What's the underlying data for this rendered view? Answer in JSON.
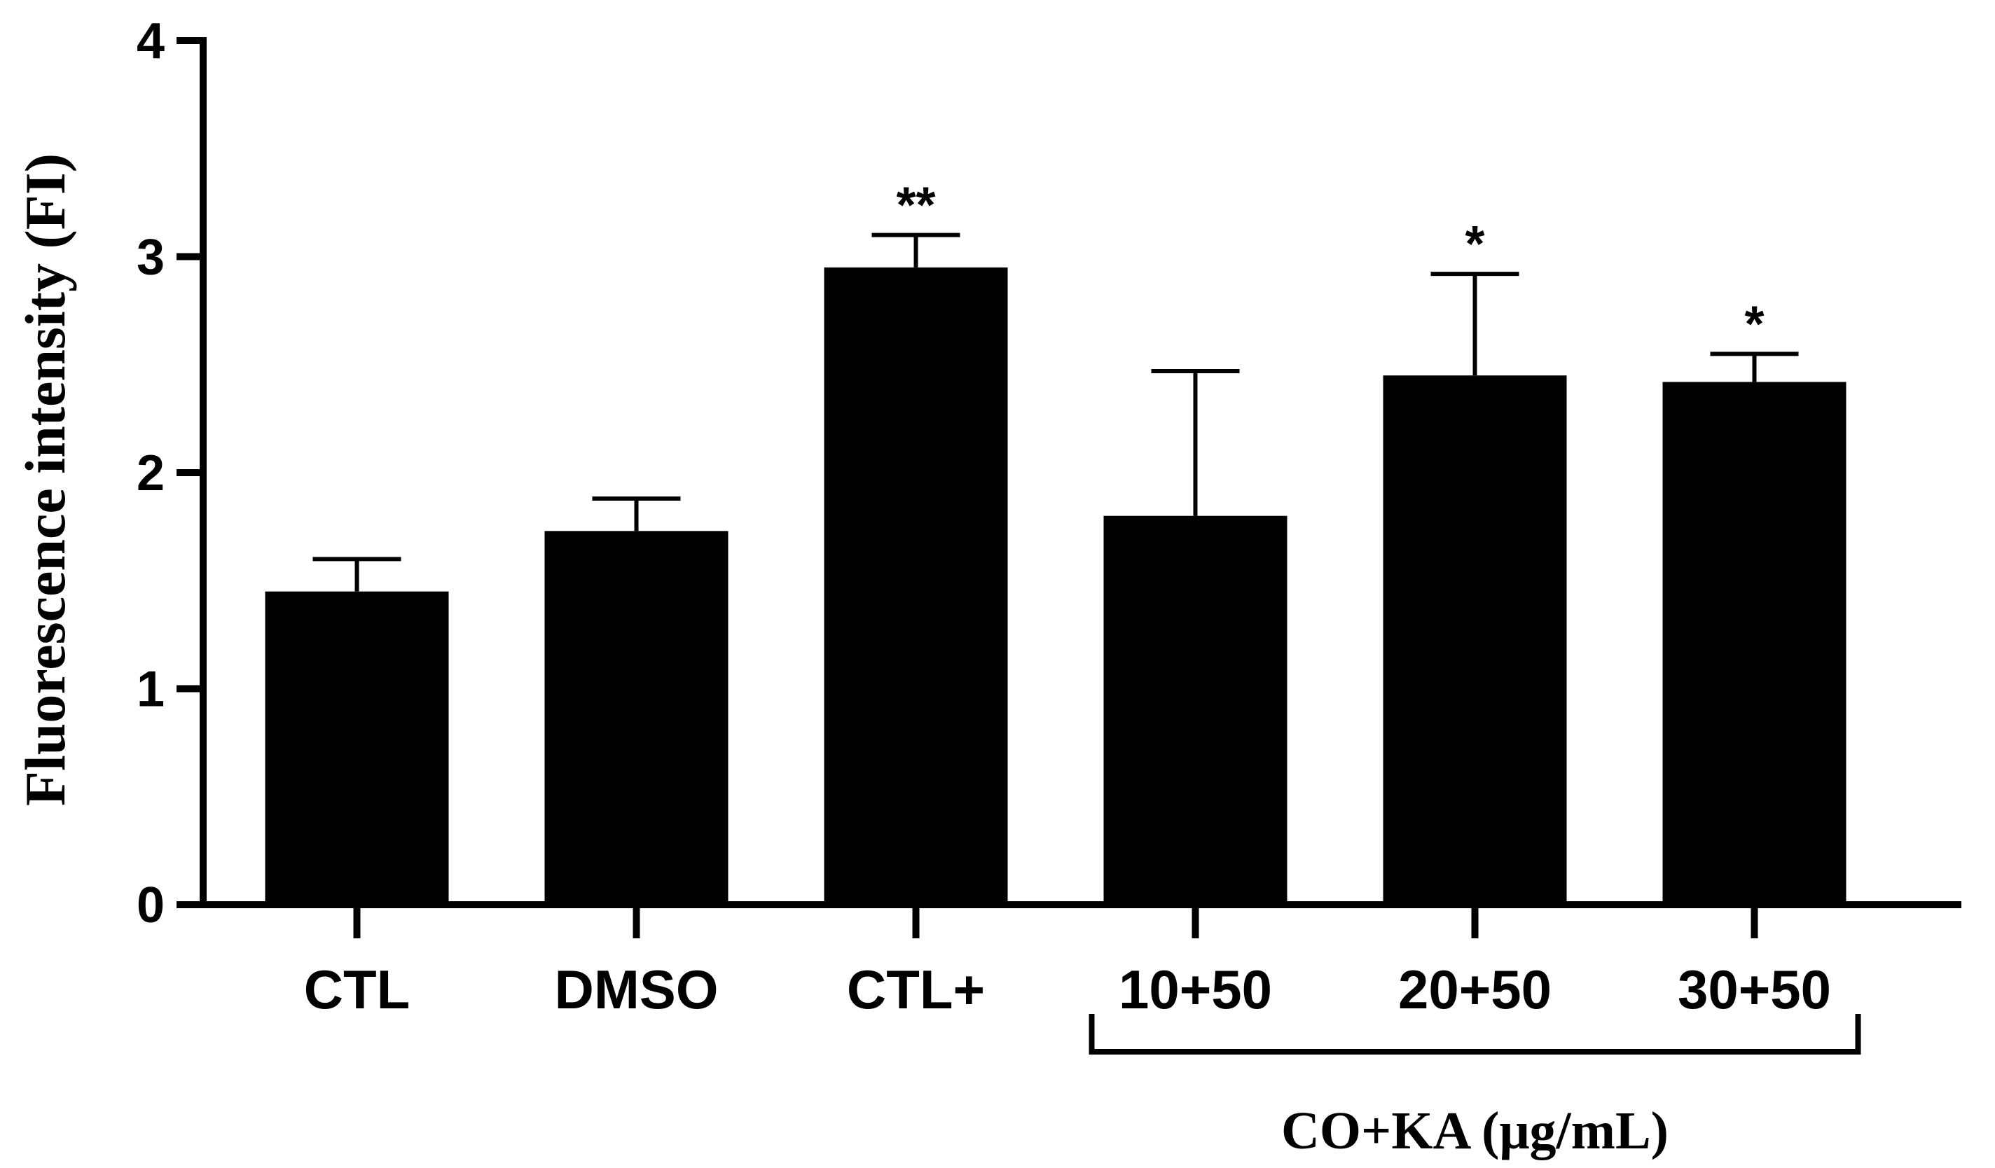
{
  "chart_data": {
    "type": "bar",
    "title": "",
    "xlabel": "",
    "ylabel": "Fluorescence intensity (FI)",
    "ylim": [
      0,
      4
    ],
    "yticks": [
      "0",
      "1",
      "2",
      "3",
      "4"
    ],
    "categories": [
      "CTL",
      "DMSO",
      "CTL+",
      "10+50",
      "20+50",
      "30+50"
    ],
    "values": [
      1.45,
      1.73,
      2.95,
      1.8,
      2.45,
      2.42
    ],
    "errors": [
      0.15,
      0.15,
      0.15,
      0.67,
      0.47,
      0.13
    ],
    "annotations": [
      "",
      "",
      "**",
      "",
      "*",
      "*"
    ],
    "group": {
      "label": "CO+KA (μg/mL)",
      "from_index": 3,
      "to_index": 5
    },
    "grid": false,
    "bar_color": "#000000"
  }
}
